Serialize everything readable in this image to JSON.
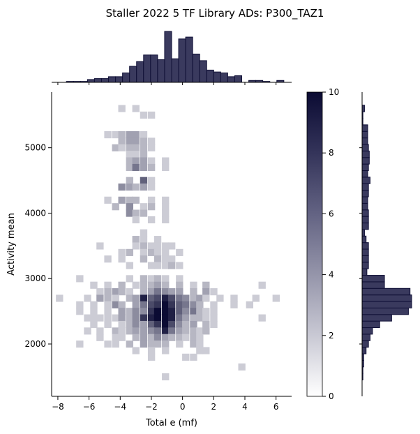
{
  "chart_data": {
    "type": "heatmap",
    "title": "Staller 2022 5 TF Library ADs: P300_TAZ1",
    "xlabel": "Total e (mf)",
    "ylabel": "Activity mean",
    "xlim": [
      -8.4,
      7.0
    ],
    "ylim": [
      1200,
      5850
    ],
    "x_ticks": [
      -8,
      -6,
      -4,
      -2,
      0,
      2,
      4,
      6
    ],
    "x_tick_labels": [
      "−8",
      "−6",
      "−4",
      "−2",
      "0",
      "2",
      "4",
      "6"
    ],
    "y_ticks": [
      2000,
      3000,
      4000,
      5000
    ],
    "y_tick_labels": [
      "2000",
      "3000",
      "4000",
      "5000"
    ],
    "colorbar": {
      "min": 0,
      "max": 10,
      "ticks": [
        0,
        2,
        4,
        6,
        8,
        10
      ],
      "tick_labels": [
        "0",
        "2",
        "4",
        "6",
        "8",
        "10"
      ]
    },
    "colors": {
      "high": "#0b0b33",
      "low": "#ffffff",
      "hist_fill": "#3a3a5e",
      "hist_edge": "#101036"
    },
    "grid": false,
    "bin_width_x": 0.45,
    "bin_height_y": 105,
    "cells": [
      [
        -3.9,
        5600,
        1
      ],
      [
        -3.0,
        5600,
        1
      ],
      [
        -2.5,
        5500,
        1
      ],
      [
        -2.0,
        5500,
        1
      ],
      [
        -4.8,
        5200,
        1
      ],
      [
        -4.3,
        5200,
        1
      ],
      [
        -3.9,
        5200,
        2
      ],
      [
        -3.4,
        5200,
        3
      ],
      [
        -3.0,
        5200,
        3
      ],
      [
        -2.5,
        5200,
        1
      ],
      [
        -3.9,
        5100,
        2
      ],
      [
        -3.4,
        5100,
        3
      ],
      [
        -3.0,
        5100,
        3
      ],
      [
        -2.5,
        5100,
        2
      ],
      [
        -2.0,
        5100,
        1
      ],
      [
        -4.3,
        5000,
        2
      ],
      [
        -3.9,
        5000,
        1
      ],
      [
        -3.4,
        5000,
        2
      ],
      [
        -3.0,
        5000,
        2
      ],
      [
        -2.5,
        5000,
        2
      ],
      [
        -2.0,
        5000,
        1
      ],
      [
        -3.4,
        4900,
        1
      ],
      [
        -3.0,
        4900,
        1
      ],
      [
        -2.5,
        4900,
        2
      ],
      [
        -3.4,
        4800,
        2
      ],
      [
        -3.0,
        4800,
        3
      ],
      [
        -2.5,
        4800,
        3
      ],
      [
        -2.0,
        4800,
        1
      ],
      [
        -1.1,
        4800,
        1
      ],
      [
        -3.4,
        4700,
        2
      ],
      [
        -3.0,
        4700,
        5
      ],
      [
        -2.5,
        4700,
        3
      ],
      [
        -2.0,
        4700,
        2
      ],
      [
        -1.1,
        4700,
        1
      ],
      [
        -3.4,
        4500,
        2
      ],
      [
        -2.5,
        4500,
        6
      ],
      [
        -2.0,
        4500,
        1
      ],
      [
        -3.9,
        4400,
        4
      ],
      [
        -3.4,
        4400,
        3
      ],
      [
        -3.0,
        4400,
        2
      ],
      [
        -2.5,
        4400,
        3
      ],
      [
        -2.0,
        4400,
        1
      ],
      [
        -4.8,
        4200,
        1
      ],
      [
        -3.9,
        4200,
        3
      ],
      [
        -3.4,
        4200,
        2
      ],
      [
        -3.0,
        4200,
        2
      ],
      [
        -2.0,
        4200,
        1
      ],
      [
        -1.1,
        4200,
        1
      ],
      [
        -4.3,
        4100,
        2
      ],
      [
        -3.4,
        4100,
        4
      ],
      [
        -2.5,
        4100,
        1
      ],
      [
        -2.0,
        4100,
        2
      ],
      [
        -1.1,
        4100,
        1
      ],
      [
        -3.4,
        4000,
        4
      ],
      [
        -3.0,
        4000,
        2
      ],
      [
        -2.5,
        4000,
        2
      ],
      [
        -1.1,
        4000,
        1
      ],
      [
        -3.0,
        3900,
        1
      ],
      [
        -2.0,
        3900,
        1
      ],
      [
        -1.1,
        3900,
        1
      ],
      [
        -2.5,
        3700,
        1
      ],
      [
        -3.0,
        3600,
        2
      ],
      [
        -2.5,
        3600,
        1
      ],
      [
        -1.6,
        3600,
        1
      ],
      [
        -5.3,
        3500,
        1
      ],
      [
        -3.0,
        3500,
        1
      ],
      [
        -2.5,
        3500,
        2
      ],
      [
        -2.0,
        3500,
        1
      ],
      [
        -1.6,
        3500,
        1
      ],
      [
        -1.1,
        3500,
        1
      ],
      [
        -0.7,
        3500,
        1
      ],
      [
        -3.9,
        3400,
        1
      ],
      [
        -3.4,
        3400,
        2
      ],
      [
        -2.5,
        3400,
        1
      ],
      [
        -2.0,
        3400,
        2
      ],
      [
        -1.6,
        3400,
        1
      ],
      [
        -1.1,
        3400,
        1
      ],
      [
        -0.2,
        3400,
        1
      ],
      [
        -4.8,
        3300,
        1
      ],
      [
        -3.9,
        3300,
        1
      ],
      [
        -2.5,
        3300,
        2
      ],
      [
        -1.6,
        3300,
        2
      ],
      [
        -1.1,
        3300,
        1
      ],
      [
        -0.7,
        3300,
        1
      ],
      [
        -3.4,
        3200,
        1
      ],
      [
        -2.0,
        3200,
        1
      ],
      [
        -1.6,
        3200,
        1
      ],
      [
        -1.1,
        3200,
        1
      ],
      [
        -0.7,
        3200,
        2
      ],
      [
        -0.2,
        3200,
        1
      ],
      [
        -6.6,
        3000,
        1
      ],
      [
        -3.4,
        3000,
        1
      ],
      [
        -2.5,
        3000,
        2
      ],
      [
        -2.0,
        3000,
        1
      ],
      [
        -1.6,
        3000,
        2
      ],
      [
        -1.1,
        3000,
        1
      ],
      [
        -0.2,
        3000,
        1
      ],
      [
        -5.7,
        2900,
        1
      ],
      [
        -4.8,
        2900,
        1
      ],
      [
        -3.9,
        2900,
        2
      ],
      [
        -3.0,
        2900,
        1
      ],
      [
        -2.5,
        2900,
        2
      ],
      [
        -2.0,
        2900,
        2
      ],
      [
        -1.6,
        2900,
        3
      ],
      [
        -1.1,
        2900,
        2
      ],
      [
        -0.2,
        2900,
        2
      ],
      [
        0.7,
        2900,
        1
      ],
      [
        1.5,
        2900,
        2
      ],
      [
        5.1,
        2900,
        1
      ],
      [
        -5.3,
        2800,
        1
      ],
      [
        -4.8,
        2800,
        2
      ],
      [
        -4.3,
        2800,
        3
      ],
      [
        -3.9,
        2800,
        2
      ],
      [
        -3.4,
        2800,
        1
      ],
      [
        -2.5,
        2800,
        2
      ],
      [
        -2.0,
        2800,
        3
      ],
      [
        -1.6,
        2800,
        5
      ],
      [
        -1.1,
        2800,
        4
      ],
      [
        -0.7,
        2800,
        3
      ],
      [
        -0.2,
        2800,
        3
      ],
      [
        0.7,
        2800,
        2
      ],
      [
        1.5,
        2800,
        3
      ],
      [
        2.0,
        2800,
        1
      ],
      [
        -7.9,
        2700,
        1
      ],
      [
        -6.1,
        2700,
        1
      ],
      [
        -5.3,
        2700,
        3
      ],
      [
        -4.8,
        2700,
        2
      ],
      [
        -4.3,
        2700,
        1
      ],
      [
        -3.4,
        2700,
        2
      ],
      [
        -3.0,
        2700,
        3
      ],
      [
        -2.5,
        2700,
        9
      ],
      [
        -2.0,
        2700,
        6
      ],
      [
        -1.6,
        2700,
        7
      ],
      [
        -1.1,
        2700,
        9
      ],
      [
        -0.7,
        2700,
        7
      ],
      [
        -0.2,
        2700,
        5
      ],
      [
        0.2,
        2700,
        4
      ],
      [
        0.7,
        2700,
        2
      ],
      [
        1.1,
        2700,
        3
      ],
      [
        1.5,
        2700,
        1
      ],
      [
        2.4,
        2700,
        1
      ],
      [
        3.3,
        2700,
        1
      ],
      [
        4.7,
        2700,
        1
      ],
      [
        6.0,
        2700,
        1
      ],
      [
        -6.6,
        2600,
        1
      ],
      [
        -5.7,
        2600,
        1
      ],
      [
        -4.8,
        2600,
        1
      ],
      [
        -4.3,
        2600,
        4
      ],
      [
        -3.9,
        2600,
        2
      ],
      [
        -3.0,
        2600,
        3
      ],
      [
        -2.5,
        2600,
        5
      ],
      [
        -2.0,
        2600,
        7
      ],
      [
        -1.6,
        2600,
        8
      ],
      [
        -1.1,
        2600,
        10
      ],
      [
        -0.7,
        2600,
        8
      ],
      [
        -0.2,
        2600,
        6
      ],
      [
        0.2,
        2600,
        5
      ],
      [
        0.7,
        2600,
        4
      ],
      [
        1.1,
        2600,
        2
      ],
      [
        2.0,
        2600,
        1
      ],
      [
        3.3,
        2600,
        1
      ],
      [
        4.3,
        2600,
        1
      ],
      [
        -6.6,
        2500,
        1
      ],
      [
        -5.7,
        2500,
        1
      ],
      [
        -4.8,
        2500,
        1
      ],
      [
        -3.9,
        2500,
        3
      ],
      [
        -3.4,
        2500,
        2
      ],
      [
        -3.0,
        2500,
        4
      ],
      [
        -2.5,
        2500,
        4
      ],
      [
        -2.0,
        2500,
        8
      ],
      [
        -1.6,
        2500,
        10
      ],
      [
        -1.1,
        2500,
        10
      ],
      [
        -0.7,
        2500,
        9
      ],
      [
        -0.2,
        2500,
        6
      ],
      [
        0.2,
        2500,
        4
      ],
      [
        0.7,
        2500,
        5
      ],
      [
        1.1,
        2500,
        2
      ],
      [
        1.5,
        2500,
        1
      ],
      [
        2.0,
        2500,
        1
      ],
      [
        -6.1,
        2400,
        1
      ],
      [
        -5.7,
        2400,
        1
      ],
      [
        -5.3,
        2400,
        1
      ],
      [
        -4.8,
        2400,
        1
      ],
      [
        -4.3,
        2400,
        1
      ],
      [
        -3.9,
        2400,
        3
      ],
      [
        -3.4,
        2400,
        2
      ],
      [
        -3.0,
        2400,
        4
      ],
      [
        -2.5,
        2400,
        8
      ],
      [
        -2.0,
        2400,
        9
      ],
      [
        -1.6,
        2400,
        10
      ],
      [
        -1.1,
        2400,
        10
      ],
      [
        -0.7,
        2400,
        9
      ],
      [
        -0.2,
        2400,
        5
      ],
      [
        0.2,
        2400,
        3
      ],
      [
        0.7,
        2400,
        2
      ],
      [
        1.1,
        2400,
        2
      ],
      [
        1.5,
        2400,
        1
      ],
      [
        2.0,
        2400,
        1
      ],
      [
        5.1,
        2400,
        1
      ],
      [
        -5.7,
        2300,
        1
      ],
      [
        -4.8,
        2300,
        1
      ],
      [
        -3.9,
        2300,
        1
      ],
      [
        -3.4,
        2300,
        2
      ],
      [
        -3.0,
        2300,
        4
      ],
      [
        -2.5,
        2300,
        3
      ],
      [
        -2.0,
        2300,
        6
      ],
      [
        -1.6,
        2300,
        8
      ],
      [
        -1.1,
        2300,
        10
      ],
      [
        -0.7,
        2300,
        7
      ],
      [
        -0.2,
        2300,
        4
      ],
      [
        0.2,
        2300,
        2
      ],
      [
        0.7,
        2300,
        3
      ],
      [
        1.5,
        2300,
        2
      ],
      [
        2.0,
        2300,
        1
      ],
      [
        -6.1,
        2200,
        1
      ],
      [
        -5.3,
        2200,
        1
      ],
      [
        -4.3,
        2200,
        2
      ],
      [
        -3.9,
        2200,
        1
      ],
      [
        -3.4,
        2200,
        2
      ],
      [
        -3.0,
        2200,
        3
      ],
      [
        -2.5,
        2200,
        3
      ],
      [
        -2.0,
        2200,
        4
      ],
      [
        -1.6,
        2200,
        5
      ],
      [
        -1.1,
        2200,
        9
      ],
      [
        -0.7,
        2200,
        5
      ],
      [
        -0.2,
        2200,
        3
      ],
      [
        0.2,
        2200,
        2
      ],
      [
        0.7,
        2200,
        2
      ],
      [
        1.1,
        2200,
        1
      ],
      [
        1.5,
        2200,
        2
      ],
      [
        -5.3,
        2100,
        1
      ],
      [
        -4.3,
        2100,
        1
      ],
      [
        -3.9,
        2100,
        1
      ],
      [
        -3.0,
        2100,
        2
      ],
      [
        -2.5,
        2100,
        3
      ],
      [
        -2.0,
        2100,
        2
      ],
      [
        -1.6,
        2100,
        4
      ],
      [
        -1.1,
        2100,
        3
      ],
      [
        -0.7,
        2100,
        2
      ],
      [
        -0.2,
        2100,
        2
      ],
      [
        0.2,
        2100,
        1
      ],
      [
        0.7,
        2100,
        2
      ],
      [
        1.1,
        2100,
        1
      ],
      [
        -6.6,
        2000,
        1
      ],
      [
        -4.8,
        2000,
        1
      ],
      [
        -4.3,
        2000,
        1
      ],
      [
        -3.4,
        2000,
        2
      ],
      [
        -2.5,
        2000,
        3
      ],
      [
        -2.0,
        2000,
        2
      ],
      [
        -1.6,
        2000,
        2
      ],
      [
        -1.1,
        2000,
        2
      ],
      [
        -0.2,
        2000,
        1
      ],
      [
        0.7,
        2000,
        2
      ],
      [
        1.1,
        2000,
        1
      ],
      [
        -3.0,
        1900,
        1
      ],
      [
        -2.0,
        1900,
        1
      ],
      [
        -1.1,
        1900,
        1
      ],
      [
        1.1,
        1900,
        1
      ],
      [
        1.5,
        1900,
        1
      ],
      [
        -2.0,
        1800,
        1
      ],
      [
        0.2,
        1800,
        1
      ],
      [
        0.7,
        1800,
        1
      ],
      [
        3.8,
        1650,
        1
      ],
      [
        -1.1,
        1500,
        1
      ]
    ],
    "x_marginal": {
      "edges": [
        -7.9,
        -7.45,
        -7.0,
        -6.55,
        -6.1,
        -5.65,
        -5.2,
        -4.75,
        -4.3,
        -3.85,
        -3.4,
        -2.95,
        -2.5,
        -2.05,
        -1.6,
        -1.15,
        -0.7,
        -0.25,
        0.2,
        0.65,
        1.1,
        1.55,
        2.0,
        2.45,
        2.9,
        3.35,
        3.8,
        4.25,
        4.7,
        5.15,
        5.6,
        6.05,
        6.5
      ],
      "counts": [
        0,
        1,
        1,
        1,
        3,
        4,
        4,
        6,
        6,
        10,
        17,
        22,
        29,
        29,
        24,
        54,
        25,
        46,
        48,
        30,
        23,
        13,
        11,
        10,
        6,
        7,
        0,
        2,
        2,
        1,
        0,
        2
      ]
    },
    "y_marginal": {
      "edges": [
        1450,
        1550,
        1650,
        1750,
        1850,
        1950,
        2050,
        2150,
        2250,
        2350,
        2450,
        2550,
        2650,
        2750,
        2850,
        2950,
        3050,
        3150,
        3250,
        3350,
        3450,
        3550,
        3650,
        3750,
        3850,
        3950,
        4050,
        4150,
        4250,
        4350,
        4450,
        4550,
        4650,
        4750,
        4850,
        4950,
        5050,
        5150,
        5250,
        5350,
        5450,
        5550,
        5650
      ],
      "counts": [
        1,
        1,
        2,
        2,
        5,
        8,
        10,
        13,
        22,
        37,
        58,
        62,
        62,
        60,
        28,
        28,
        6,
        8,
        8,
        8,
        8,
        5,
        3,
        8,
        8,
        8,
        7,
        7,
        8,
        8,
        10,
        7,
        8,
        9,
        9,
        8,
        7,
        7,
        7,
        1,
        1,
        3
      ]
    }
  }
}
